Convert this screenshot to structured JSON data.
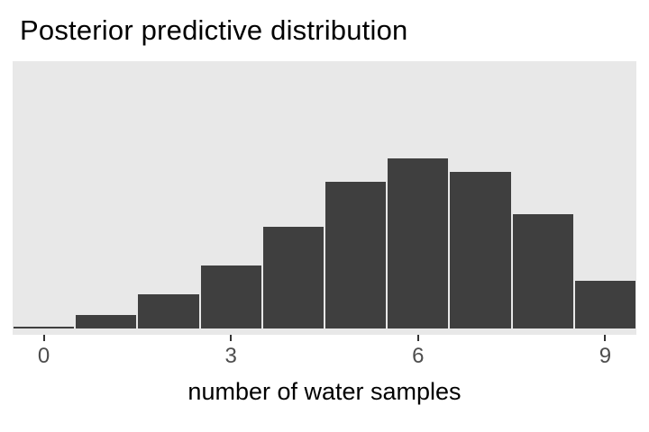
{
  "chart_data": {
    "type": "bar",
    "title": "Posterior predictive distribution",
    "xlabel": "number of water samples",
    "ylabel": "",
    "categories": [
      0,
      1,
      2,
      3,
      4,
      5,
      6,
      7,
      8,
      9
    ],
    "values": [
      0.01,
      0.08,
      0.2,
      0.37,
      0.6,
      0.86,
      1.0,
      0.92,
      0.67,
      0.28
    ],
    "value_units": "relative frequency (normalized, tallest bar = 1; no y-axis labels shown)",
    "x_ticks": [
      0,
      3,
      6,
      9
    ],
    "xlim": [
      -0.5,
      9.5
    ],
    "bar_width": 1,
    "grid": false,
    "legend": false,
    "colors": {
      "bar_fill": "#3F3F3F",
      "panel_background": "#E8E8E8",
      "tick_label": "#4D4D4D",
      "title_text": "#000000"
    }
  }
}
